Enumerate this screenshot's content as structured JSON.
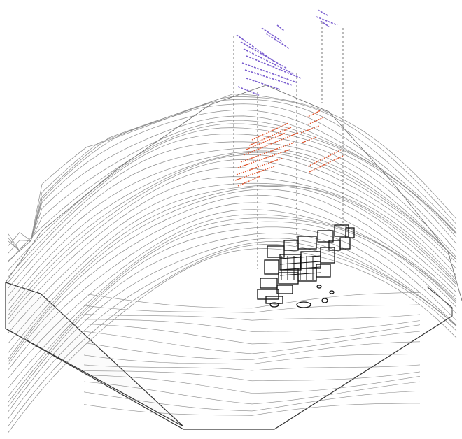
{
  "diagram": {
    "type": "axonometric-terrain-model",
    "colors": {
      "background": "#ffffff",
      "contour": "#8a8a8a",
      "block_edge": "#333333",
      "projection": "#555555",
      "plan_ink": "#111111",
      "red_layer": "#e0542c",
      "blue_layer": "#7b5fd0"
    },
    "layers": [
      {
        "name": "terrain-contours",
        "color": "contour"
      },
      {
        "name": "ruin-plan",
        "color": "plan_ink"
      },
      {
        "name": "mid-level-plan",
        "color": "red_layer"
      },
      {
        "name": "upper-level-plan",
        "color": "blue_layer"
      }
    ]
  }
}
